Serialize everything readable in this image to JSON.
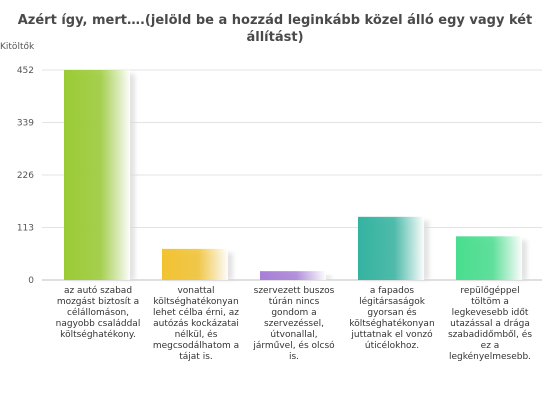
{
  "chart_data": {
    "type": "bar",
    "title": "Azért így, mert….(jelöld be a hozzád leginkább közel álló egy vagy két állítást)",
    "ylabel": "Kitöltők",
    "yticks": [
      0,
      113,
      226,
      339,
      452
    ],
    "ylim": [
      0,
      452
    ],
    "grid": true,
    "categories": [
      "az autó szabad mozgást biztosít a célállomáson, nagyobb családdal költséghatékony.",
      "vonattal költséghatékonyan lehet célba érni, az autózás kockázatai nélkül, és megcsodálhatom a tájat is.",
      "szervezett buszos túrán nincs gondom a szervezéssel, útvonallal, járművel, és olcsó is.",
      "a fapados légitársaságok gyorsan és költséghatékonyan juttatnak el vonzó úticélokhoz.",
      "repülőgéppel töltöm a legkevesebb időt utazással a drága szabadidőmből, és ez a legkényelmesebb."
    ],
    "values": [
      452,
      67,
      19,
      136,
      94
    ],
    "colors": [
      "#9acb34",
      "#f2c230",
      "#a77fd6",
      "#34b3a0",
      "#48de8e"
    ]
  }
}
